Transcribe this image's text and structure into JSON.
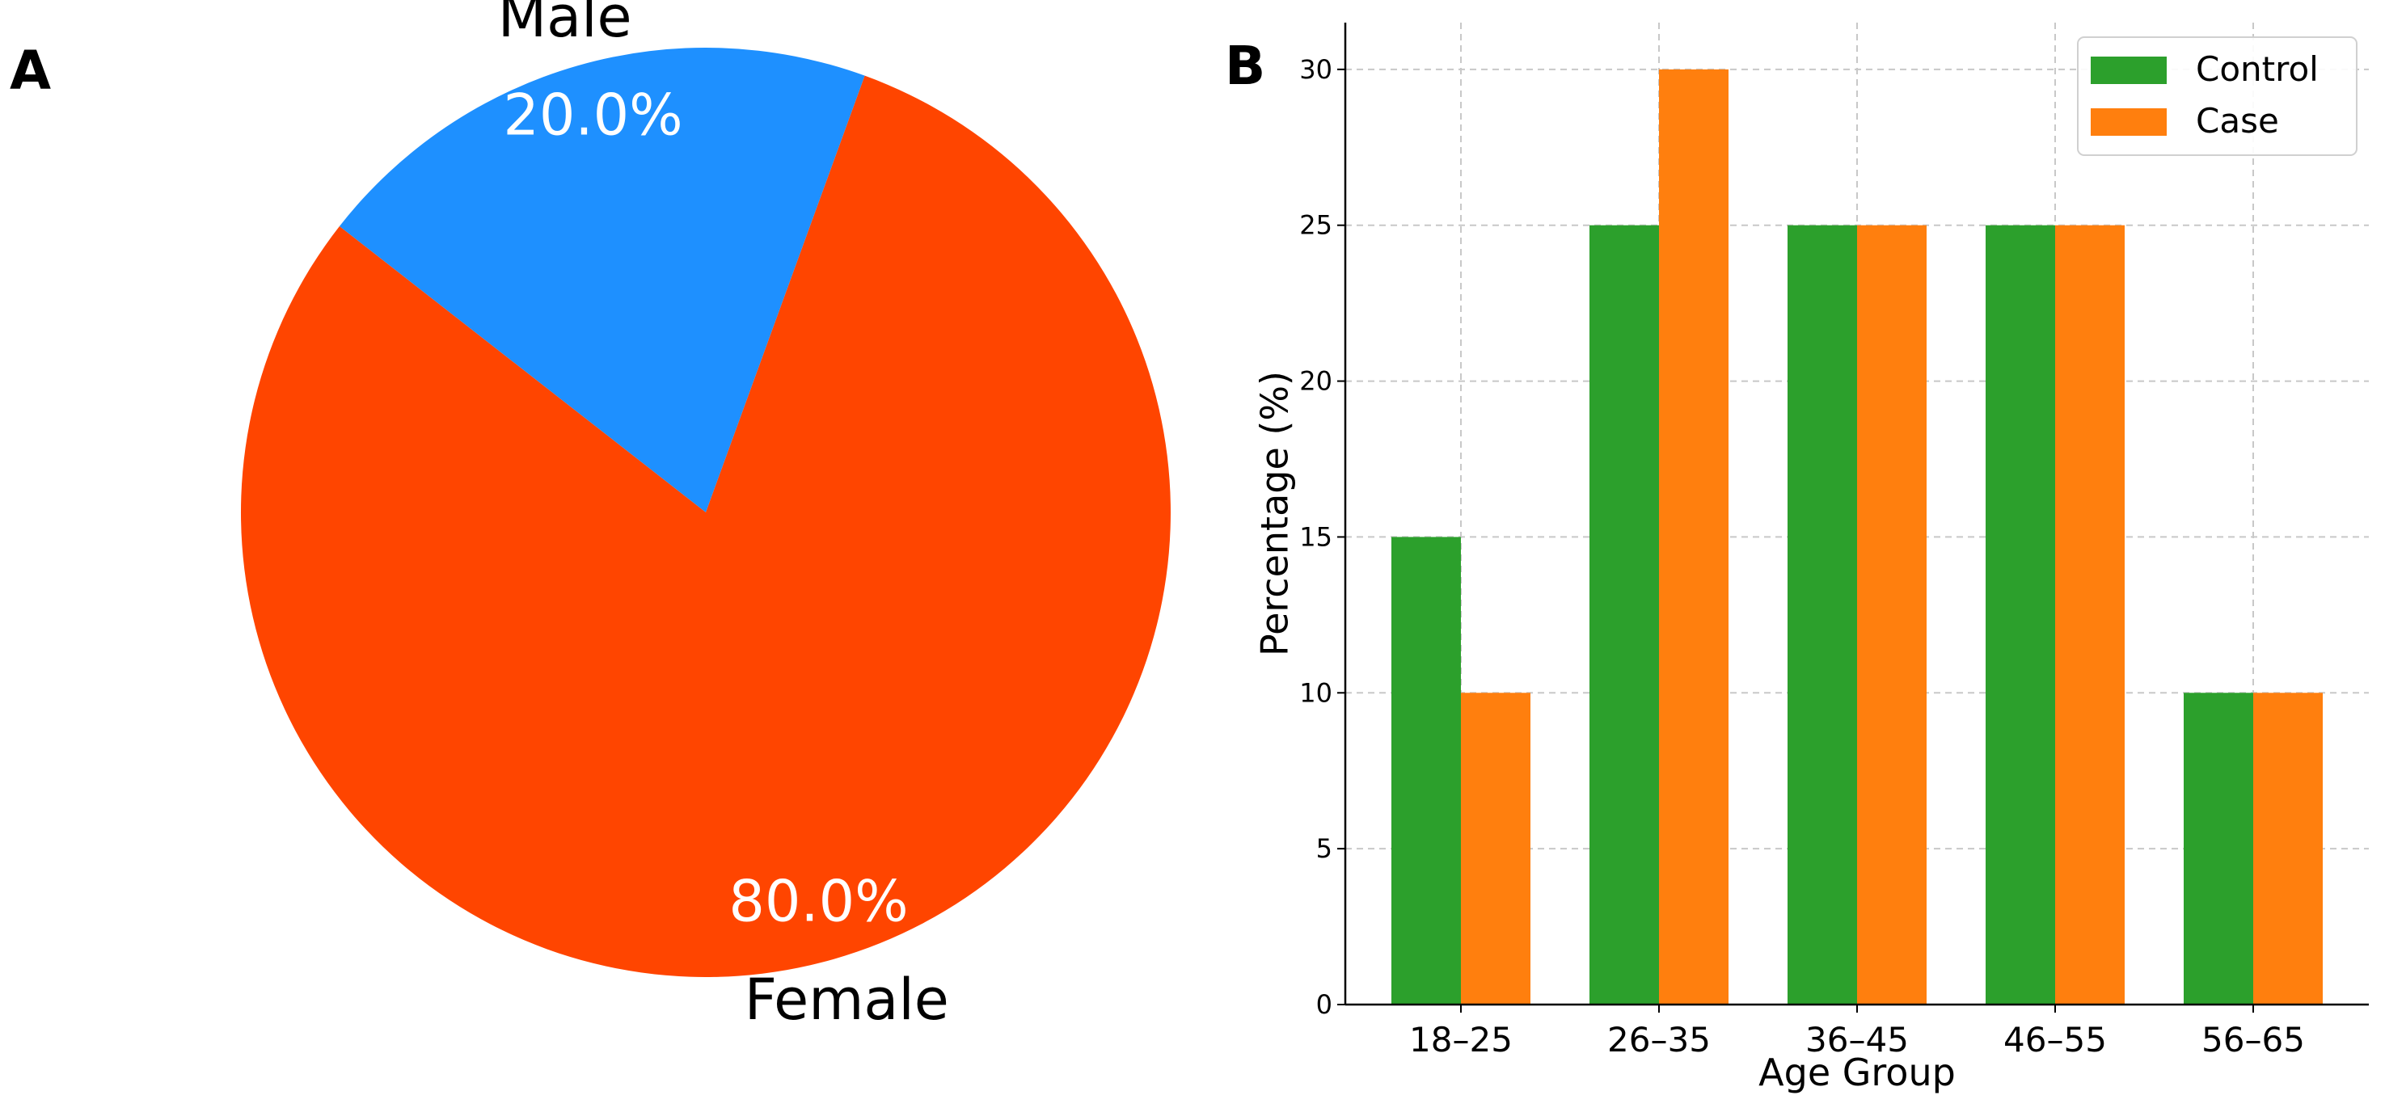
{
  "panel_a": {
    "letter": "A"
  },
  "panel_b": {
    "letter": "B"
  },
  "chart_data": [
    {
      "type": "pie",
      "slices": [
        {
          "label": "Male",
          "value": 20.0,
          "pct_label": "20.0%",
          "color": "#1E90FF"
        },
        {
          "label": "Female",
          "value": 80.0,
          "pct_label": "80.0%",
          "color": "#FF4500"
        }
      ]
    },
    {
      "type": "bar",
      "categories": [
        "18–25",
        "26–35",
        "36–45",
        "46–55",
        "56–65"
      ],
      "series": [
        {
          "name": "Control",
          "values": [
            15,
            25,
            25,
            25,
            10
          ],
          "color": "#2CA02C"
        },
        {
          "name": "Case",
          "values": [
            10,
            30,
            25,
            25,
            10
          ],
          "color": "#FF7F0E"
        }
      ],
      "xlabel": "Age Group",
      "ylabel": "Percentage (%)",
      "ylim": [
        0,
        31.5
      ],
      "yticks": [
        0,
        5,
        10,
        15,
        20,
        25,
        30
      ],
      "grid": true,
      "legend": "top-right"
    }
  ]
}
